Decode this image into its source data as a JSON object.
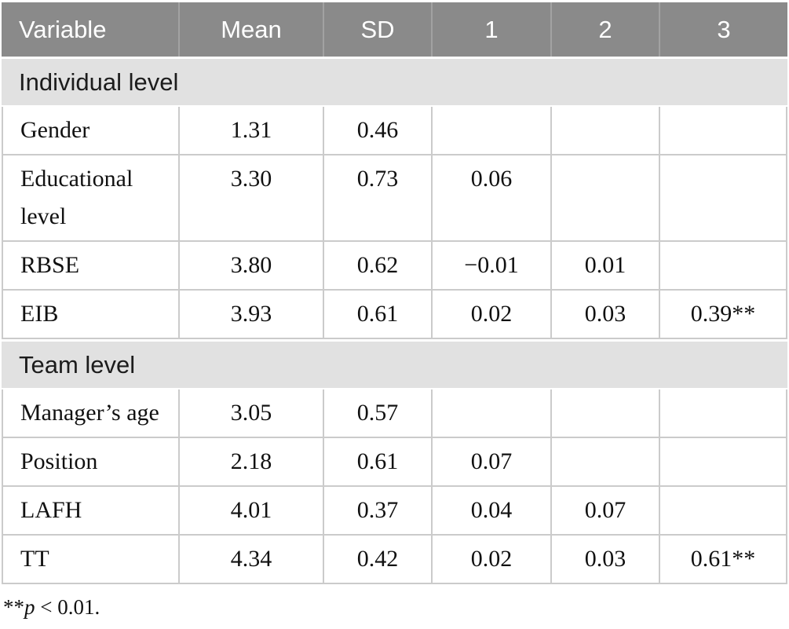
{
  "table": {
    "columns": [
      "Variable",
      "Mean",
      "SD",
      "1",
      "2",
      "3"
    ],
    "sections": [
      {
        "label": "Individual level",
        "rows": [
          {
            "variable": "Gender",
            "values": [
              "1.31",
              "0.46",
              "",
              "",
              ""
            ]
          },
          {
            "variable": "Educational level",
            "values": [
              "3.30",
              "0.73",
              "0.06",
              "",
              ""
            ]
          },
          {
            "variable": "RBSE",
            "values": [
              "3.80",
              "0.62",
              "−0.01",
              "0.01",
              ""
            ]
          },
          {
            "variable": "EIB",
            "values": [
              "3.93",
              "0.61",
              "0.02",
              "0.03",
              "0.39**"
            ]
          }
        ]
      },
      {
        "label": "Team level",
        "rows": [
          {
            "variable": "Manager’s age",
            "values": [
              "3.05",
              "0.57",
              "",
              "",
              ""
            ]
          },
          {
            "variable": "Position",
            "values": [
              "2.18",
              "0.61",
              "0.07",
              "",
              ""
            ]
          },
          {
            "variable": "LAFH",
            "values": [
              "4.01",
              "0.37",
              "0.04",
              "0.07",
              ""
            ]
          },
          {
            "variable": "TT",
            "values": [
              "4.34",
              "0.42",
              "0.02",
              "0.03",
              "0.61**"
            ]
          }
        ]
      }
    ],
    "footnote": {
      "marker": "**",
      "symbol": "p",
      "rest": " < 0.01."
    }
  },
  "colors": {
    "header_bg": "#8a8a8a",
    "header_divider": "#a2a2a2",
    "header_text": "#ffffff",
    "section_bg": "#e1e1e1",
    "row_border": "#cbcbcb",
    "body_text": "#111111"
  }
}
